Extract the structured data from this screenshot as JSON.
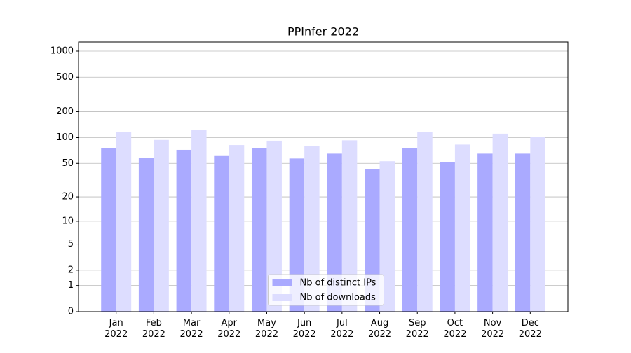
{
  "chart_data": {
    "type": "bar",
    "title": "PPInfer 2022",
    "categories": [
      [
        "Jan",
        "2022"
      ],
      [
        "Feb",
        "2022"
      ],
      [
        "Mar",
        "2022"
      ],
      [
        "Apr",
        "2022"
      ],
      [
        "May",
        "2022"
      ],
      [
        "Jun",
        "2022"
      ],
      [
        "Jul",
        "2022"
      ],
      [
        "Aug",
        "2022"
      ],
      [
        "Sep",
        "2022"
      ],
      [
        "Oct",
        "2022"
      ],
      [
        "Nov",
        "2022"
      ],
      [
        "Dec",
        "2022"
      ]
    ],
    "series": [
      {
        "name": "Nb of distinct IPs",
        "color": "#aaaaff",
        "values": [
          75,
          58,
          72,
          61,
          75,
          57,
          65,
          43,
          75,
          52,
          65,
          65
        ]
      },
      {
        "name": "Nb of downloads",
        "color": "#ddddff",
        "values": [
          117,
          94,
          122,
          82,
          92,
          80,
          93,
          53,
          117,
          83,
          111,
          102
        ]
      }
    ],
    "yscale": "log1p",
    "ylim": [
      0,
      1273
    ],
    "yticks": [
      0,
      1,
      2,
      5,
      10,
      20,
      50,
      100,
      200,
      500,
      1000
    ],
    "grid": true,
    "legend": "lower center"
  }
}
